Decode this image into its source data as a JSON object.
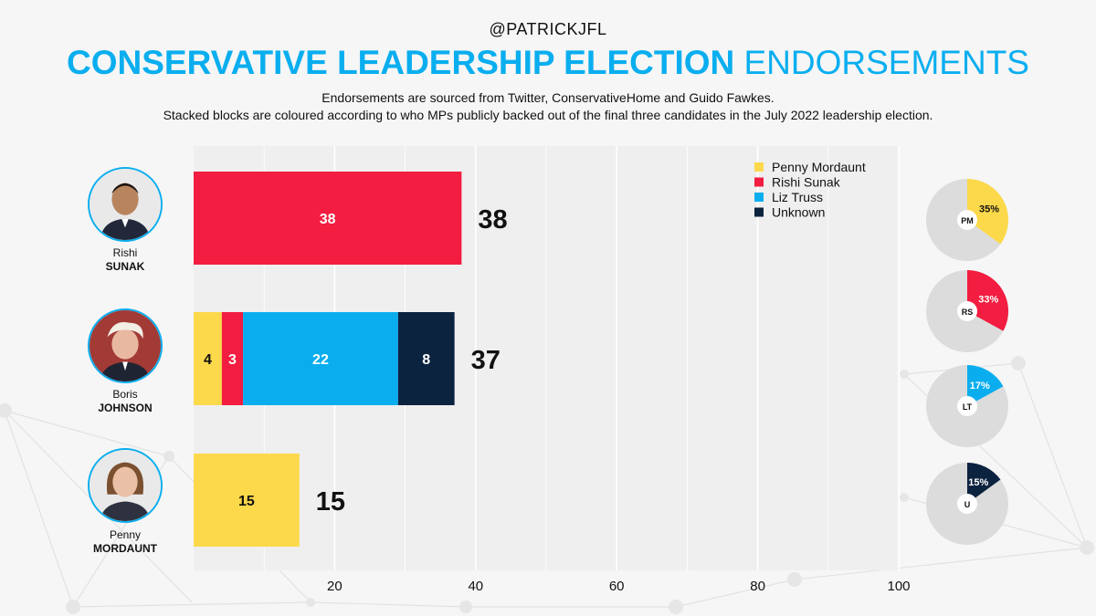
{
  "header": {
    "handle": "@PATRICKJFL",
    "title_bold": "CONSERVATIVE LEADERSHIP ELECTION",
    "title_light": "ENDORSEMENTS",
    "subtitle_line1": "Endorsements are sourced from Twitter, ConservativeHome and Guido Fawkes.",
    "subtitle_line2": "Stacked blocks are coloured according to who MPs publicly backed out of the final three candidates in the July 2022 leadership election."
  },
  "candidates": [
    {
      "first": "Rishi",
      "surname": "SUNAK"
    },
    {
      "first": "Boris",
      "surname": "JOHNSON"
    },
    {
      "first": "Penny",
      "surname": "MORDAUNT"
    }
  ],
  "colors": {
    "penny_mordaunt": "#fcd94a",
    "rishi_sunak": "#f21d40",
    "liz_truss": "#0aaeef",
    "unknown": "#0c2340",
    "pie_bg": "#dcdcdc",
    "plot_bg": "#efefef"
  },
  "chart_data": [
    {
      "type": "bar",
      "orientation": "horizontal",
      "stacked": true,
      "categories": [
        "Rishi SUNAK",
        "Boris JOHNSON",
        "Penny MORDAUNT"
      ],
      "series": [
        {
          "name": "Penny Mordaunt",
          "color": "#fcd94a",
          "values": [
            0,
            4,
            15
          ]
        },
        {
          "name": "Rishi Sunak",
          "color": "#f21d40",
          "values": [
            38,
            3,
            0
          ]
        },
        {
          "name": "Liz Truss",
          "color": "#0aaeef",
          "values": [
            0,
            22,
            0
          ]
        },
        {
          "name": "Unknown",
          "color": "#0c2340",
          "values": [
            0,
            8,
            0
          ]
        }
      ],
      "totals": [
        38,
        37,
        15
      ],
      "xlim": [
        0,
        100
      ],
      "xticks": [
        20,
        40,
        60,
        80,
        100
      ],
      "legend_position": "top-right",
      "grid": true
    },
    {
      "type": "pie",
      "charts": [
        {
          "label": "PM",
          "percent": 35,
          "color": "#fcd94a",
          "percent_text": "35%"
        },
        {
          "label": "RS",
          "percent": 33,
          "color": "#f21d40",
          "percent_text": "33%"
        },
        {
          "label": "LT",
          "percent": 17,
          "color": "#0aaeef",
          "percent_text": "17%"
        },
        {
          "label": "U",
          "percent": 15,
          "color": "#0c2340",
          "percent_text": "15%"
        }
      ]
    }
  ]
}
